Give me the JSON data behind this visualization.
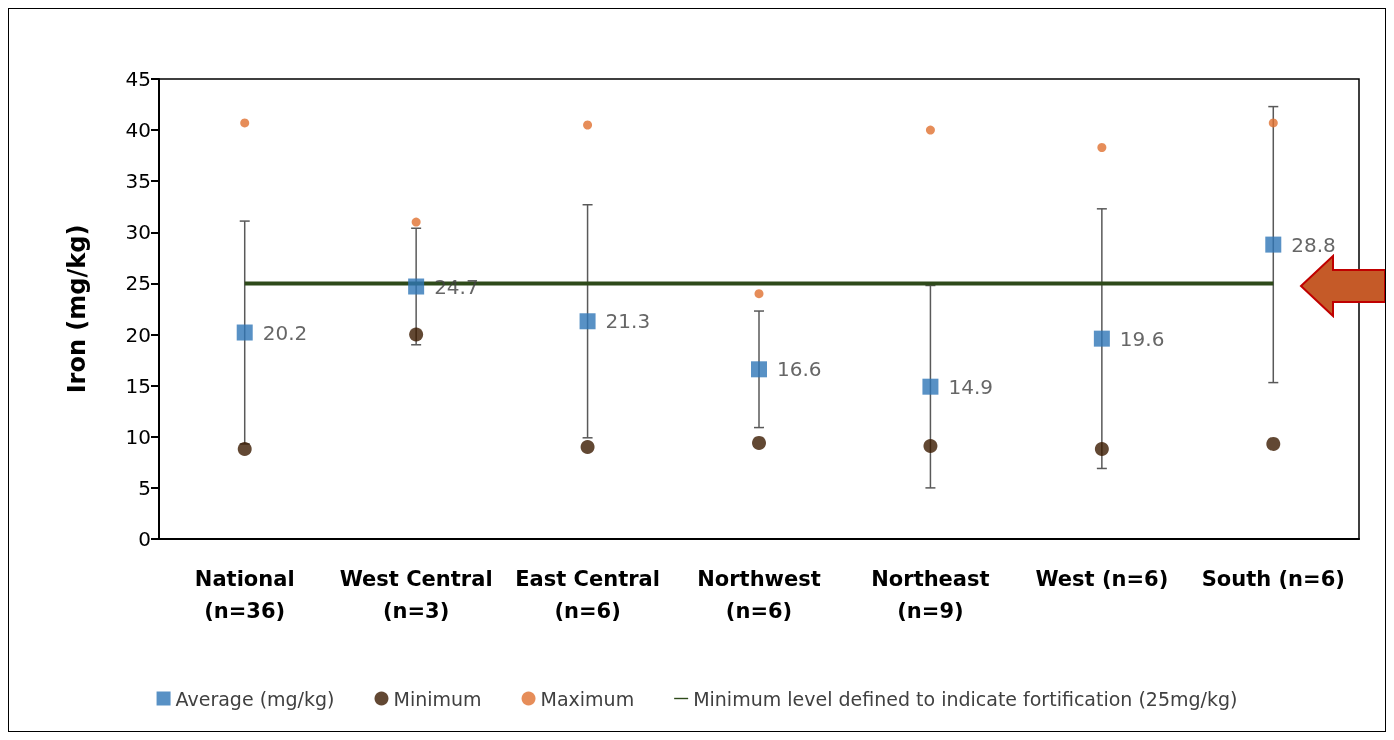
{
  "chart_data": {
    "type": "scatter",
    "ylabel": "Iron (mg/kg)",
    "categories": [
      "National\n(n=36)",
      "West Central\n(n=3)",
      "East Central\n(n=6)",
      "Northwest\n(n=6)",
      "Northeast\n(n=9)",
      "West (n=6)",
      "South (n=6)"
    ],
    "series": [
      {
        "name": "Average (mg/kg)",
        "color": "#2e75b6",
        "marker": "square",
        "values": [
          20.2,
          24.7,
          21.3,
          16.6,
          14.9,
          19.6,
          28.8
        ],
        "errors": [
          10.9,
          5.7,
          11.4,
          5.7,
          9.9,
          12.7,
          13.5
        ],
        "value_labels": [
          "20.2",
          "24.7",
          "21.3",
          "16.6",
          "14.9",
          "19.6",
          "28.8"
        ]
      },
      {
        "name": "Minimum",
        "color": "#3b1a00",
        "marker": "circle",
        "values": [
          8.8,
          20.0,
          9.0,
          9.4,
          9.1,
          8.8,
          9.3
        ]
      },
      {
        "name": "Maximum",
        "color": "#e07030",
        "marker": "circle",
        "values": [
          40.7,
          31.0,
          40.5,
          24.0,
          40.0,
          38.3,
          40.7
        ]
      }
    ],
    "ref_lines": [
      {
        "axis": "y",
        "value": 25,
        "label": "Minimum level defined to indicate fortification (25mg/kg)",
        "color": "#2e4a1a"
      }
    ],
    "ylim": [
      0,
      45
    ],
    "yticks": [
      0,
      5,
      10,
      15,
      20,
      25,
      30,
      35,
      40,
      45
    ],
    "grid": false,
    "legend": "bottom"
  }
}
